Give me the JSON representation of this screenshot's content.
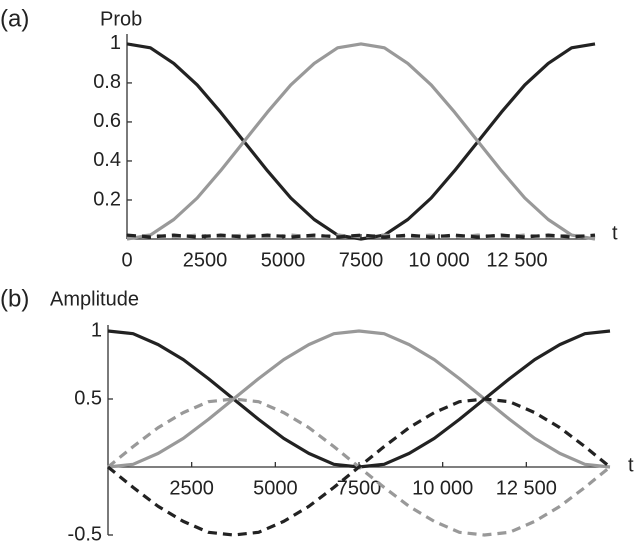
{
  "chart_data": [
    {
      "type": "line",
      "panel_label": "(a)",
      "ylabel": "Prob",
      "xlabel": "t",
      "x": [
        0,
        750,
        1500,
        2250,
        3000,
        3750,
        4500,
        5250,
        6000,
        6750,
        7500,
        8250,
        9000,
        9750,
        10500,
        11250,
        12000,
        12750,
        13500,
        14250,
        15000
      ],
      "series": [
        {
          "color": "#222222",
          "dash": false,
          "values": [
            1,
            0.98,
            0.9,
            0.79,
            0.65,
            0.5,
            0.35,
            0.21,
            0.1,
            0.02,
            0,
            0.02,
            0.1,
            0.21,
            0.35,
            0.5,
            0.65,
            0.79,
            0.9,
            0.98,
            1
          ]
        },
        {
          "color": "#999999",
          "dash": false,
          "values": [
            0,
            0.02,
            0.1,
            0.21,
            0.35,
            0.5,
            0.65,
            0.79,
            0.9,
            0.98,
            1,
            0.98,
            0.9,
            0.79,
            0.65,
            0.5,
            0.35,
            0.21,
            0.1,
            0.02,
            0
          ]
        },
        {
          "color": "#999999",
          "dash": true,
          "values": [
            0.01,
            0.02,
            0.01,
            0.02,
            0.01,
            0.02,
            0.01,
            0.02,
            0.01,
            0.02,
            0.01,
            0.02,
            0.01,
            0.02,
            0.01,
            0.02,
            0.01,
            0.02,
            0.01,
            0.02,
            0.01
          ]
        },
        {
          "color": "#222222",
          "dash": true,
          "values": [
            0.02,
            0.01,
            0.02,
            0.01,
            0.02,
            0.01,
            0.02,
            0.01,
            0.02,
            0.01,
            0.02,
            0.01,
            0.02,
            0.01,
            0.02,
            0.01,
            0.02,
            0.01,
            0.02,
            0.01,
            0.02
          ]
        }
      ],
      "xlim": [
        0,
        15000
      ],
      "ylim": [
        0,
        1.02
      ],
      "xticks": [
        0,
        2500,
        5000,
        7500,
        {
          "value": 10000,
          "label": "10 000"
        },
        {
          "value": 12500,
          "label": "12 500"
        }
      ],
      "yticks": [
        0.2,
        0.4,
        0.6,
        0.8,
        1
      ]
    },
    {
      "type": "line",
      "panel_label": "(b)",
      "ylabel": "Amplitude",
      "xlabel": "t",
      "x": [
        0,
        750,
        1500,
        2250,
        3000,
        3750,
        4500,
        5250,
        6000,
        6750,
        7500,
        8250,
        9000,
        9750,
        10500,
        11250,
        12000,
        12750,
        13500,
        14250,
        15000
      ],
      "series": [
        {
          "color": "#222222",
          "dash": false,
          "values": [
            1,
            0.98,
            0.9,
            0.79,
            0.65,
            0.5,
            0.35,
            0.21,
            0.1,
            0.02,
            0,
            0.02,
            0.1,
            0.21,
            0.35,
            0.5,
            0.65,
            0.79,
            0.9,
            0.98,
            1
          ]
        },
        {
          "color": "#999999",
          "dash": false,
          "values": [
            0,
            0.02,
            0.1,
            0.21,
            0.35,
            0.5,
            0.65,
            0.79,
            0.9,
            0.98,
            1,
            0.98,
            0.9,
            0.79,
            0.65,
            0.5,
            0.35,
            0.21,
            0.1,
            0.02,
            0
          ]
        },
        {
          "color": "#999999",
          "dash": true,
          "values": [
            0,
            0.15,
            0.29,
            0.4,
            0.48,
            0.5,
            0.48,
            0.4,
            0.29,
            0.15,
            0,
            -0.15,
            -0.29,
            -0.4,
            -0.48,
            -0.5,
            -0.48,
            -0.4,
            -0.29,
            -0.15,
            0
          ]
        },
        {
          "color": "#222222",
          "dash": true,
          "values": [
            0,
            -0.15,
            -0.29,
            -0.4,
            -0.48,
            -0.5,
            -0.48,
            -0.4,
            -0.29,
            -0.15,
            0,
            0.15,
            0.29,
            0.4,
            0.48,
            0.5,
            0.48,
            0.4,
            0.29,
            0.15,
            0
          ]
        }
      ],
      "xlim": [
        0,
        15000
      ],
      "ylim": [
        -0.5,
        1
      ],
      "xticks": [
        2500,
        5000,
        7500,
        {
          "value": 10000,
          "label": "10 000"
        },
        {
          "value": 12500,
          "label": "12 500"
        }
      ],
      "yticks": [
        -0.5,
        0.5,
        1
      ]
    }
  ]
}
